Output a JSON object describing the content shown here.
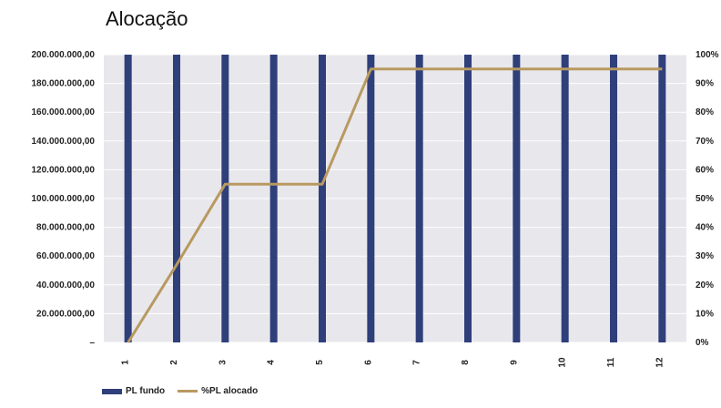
{
  "chart_data": {
    "type": "bar",
    "title": "Alocação",
    "categories": [
      "1",
      "2",
      "3",
      "4",
      "5",
      "6",
      "7",
      "8",
      "9",
      "10",
      "11",
      "12"
    ],
    "series": [
      {
        "name": "PL fundo",
        "type": "bar",
        "axis": "left",
        "color": "#2e3f7a",
        "values": [
          200000000,
          200000000,
          200000000,
          200000000,
          200000000,
          200000000,
          200000000,
          200000000,
          200000000,
          200000000,
          200000000,
          200000000
        ]
      },
      {
        "name": "%PL alocado",
        "type": "line",
        "axis": "right",
        "color": "#b89960",
        "values": [
          0,
          0.27,
          0.55,
          0.55,
          0.55,
          0.95,
          0.95,
          0.95,
          0.95,
          0.95,
          0.95,
          0.95
        ]
      }
    ],
    "y_left": {
      "ylim": [
        0,
        200000000
      ],
      "tick_labels": [
        "–",
        "20.000.000,00",
        "40.000.000,00",
        "60.000.000,00",
        "80.000.000,00",
        "100.000.000,00",
        "120.000.000,00",
        "140.000.000,00",
        "160.000.000,00",
        "180.000.000,00",
        "200.000.000,00"
      ]
    },
    "y_right": {
      "ylim": [
        0,
        1
      ],
      "tick_labels": [
        "0%",
        "10%",
        "20%",
        "30%",
        "40%",
        "50%",
        "60%",
        "70%",
        "80%",
        "90%",
        "100%"
      ]
    },
    "grid": true,
    "legend": "bottom-left"
  }
}
